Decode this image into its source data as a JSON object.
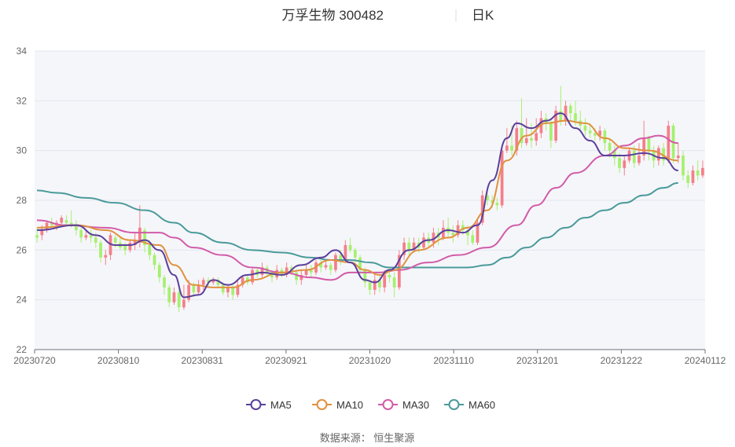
{
  "chart_data": {
    "type": "candlestick",
    "title": "万孚生物 300482",
    "subtitle": "日K",
    "source": "数据来源： 恒生聚源",
    "ylim": [
      22,
      34
    ],
    "yticks": [
      "22",
      "24",
      "26",
      "28",
      "30",
      "32",
      "34"
    ],
    "xticks": [
      "20230720",
      "20230810",
      "20230831",
      "20230921",
      "20231020",
      "20231110",
      "20231201",
      "20231222",
      "20240112"
    ],
    "colors": {
      "up": "#f57f89",
      "down": "#a6f06e",
      "MA5": "#5b3f9b",
      "MA10": "#e0913e",
      "MA30": "#d25ba8",
      "MA60": "#4a9a9a",
      "plot_band": "#f5f6fa",
      "grid": "#e3e6ee"
    },
    "legend": [
      {
        "name": "MA5",
        "key": "MA5"
      },
      {
        "name": "MA10",
        "key": "MA10"
      },
      {
        "name": "MA30",
        "key": "MA30"
      },
      {
        "name": "MA60",
        "key": "MA60"
      }
    ],
    "ma_series": {
      "MA5": [
        [
          0,
          26.8
        ],
        [
          8,
          27.0
        ],
        [
          12,
          26.6
        ],
        [
          16,
          26.2
        ],
        [
          19,
          26.2
        ],
        [
          22,
          26.4
        ],
        [
          25,
          26.0
        ],
        [
          28,
          25.0
        ],
        [
          30,
          24.1
        ],
        [
          33,
          24.2
        ],
        [
          36,
          24.8
        ],
        [
          39,
          24.6
        ],
        [
          43,
          25.0
        ],
        [
          46,
          25.1
        ],
        [
          50,
          25.0
        ],
        [
          54,
          25.4
        ],
        [
          58,
          25.7
        ],
        [
          61,
          26.0
        ],
        [
          64,
          25.5
        ],
        [
          67,
          24.8
        ],
        [
          69,
          24.7
        ],
        [
          72,
          25.2
        ],
        [
          76,
          26.0
        ],
        [
          80,
          26.4
        ],
        [
          84,
          26.8
        ],
        [
          87,
          26.7
        ],
        [
          90,
          27.0
        ],
        [
          93,
          28.8
        ],
        [
          96,
          30.5
        ],
        [
          98,
          31.1
        ],
        [
          101,
          30.9
        ],
        [
          104,
          31.2
        ],
        [
          107,
          31.5
        ],
        [
          110,
          30.9
        ],
        [
          113,
          30.4
        ],
        [
          116,
          29.8
        ],
        [
          120,
          29.8
        ],
        [
          124,
          29.9
        ],
        [
          128,
          29.7
        ],
        [
          131,
          29.2
        ]
      ],
      "MA10": [
        [
          0,
          26.9
        ],
        [
          8,
          27.0
        ],
        [
          14,
          26.8
        ],
        [
          19,
          26.4
        ],
        [
          25,
          26.2
        ],
        [
          28,
          25.4
        ],
        [
          32,
          24.6
        ],
        [
          36,
          24.5
        ],
        [
          40,
          24.5
        ],
        [
          44,
          24.8
        ],
        [
          50,
          25.1
        ],
        [
          55,
          25.2
        ],
        [
          60,
          25.6
        ],
        [
          64,
          25.5
        ],
        [
          67,
          25.2
        ],
        [
          70,
          25.0
        ],
        [
          73,
          25.2
        ],
        [
          78,
          26.0
        ],
        [
          84,
          26.5
        ],
        [
          88,
          26.9
        ],
        [
          92,
          27.6
        ],
        [
          96,
          29.6
        ],
        [
          100,
          30.6
        ],
        [
          104,
          31.1
        ],
        [
          108,
          31.2
        ],
        [
          112,
          31.1
        ],
        [
          116,
          30.5
        ],
        [
          120,
          30.1
        ],
        [
          125,
          30.0
        ],
        [
          131,
          29.6
        ]
      ],
      "MA30": [
        [
          0,
          27.2
        ],
        [
          6,
          27.0
        ],
        [
          14,
          26.9
        ],
        [
          20,
          26.7
        ],
        [
          25,
          26.7
        ],
        [
          28,
          26.5
        ],
        [
          32,
          26.1
        ],
        [
          38,
          25.8
        ],
        [
          44,
          25.3
        ],
        [
          50,
          25.1
        ],
        [
          56,
          24.9
        ],
        [
          60,
          24.8
        ],
        [
          64,
          25.1
        ],
        [
          70,
          25.1
        ],
        [
          74,
          25.2
        ],
        [
          80,
          25.5
        ],
        [
          86,
          25.8
        ],
        [
          92,
          26.1
        ],
        [
          98,
          27.0
        ],
        [
          102,
          27.8
        ],
        [
          106,
          28.5
        ],
        [
          110,
          29.1
        ],
        [
          116,
          29.8
        ],
        [
          120,
          30.2
        ],
        [
          124,
          30.5
        ],
        [
          127,
          30.6
        ],
        [
          131,
          30.3
        ]
      ],
      "MA60": [
        [
          0,
          28.4
        ],
        [
          4,
          28.3
        ],
        [
          10,
          28.1
        ],
        [
          16,
          27.9
        ],
        [
          22,
          27.6
        ],
        [
          28,
          27.1
        ],
        [
          32,
          26.7
        ],
        [
          38,
          26.3
        ],
        [
          44,
          26.0
        ],
        [
          50,
          25.9
        ],
        [
          56,
          25.7
        ],
        [
          60,
          25.6
        ],
        [
          64,
          25.6
        ],
        [
          68,
          25.5
        ],
        [
          72,
          25.3
        ],
        [
          76,
          25.3
        ],
        [
          82,
          25.3
        ],
        [
          88,
          25.3
        ],
        [
          92,
          25.4
        ],
        [
          96,
          25.7
        ],
        [
          100,
          26.1
        ],
        [
          104,
          26.5
        ],
        [
          108,
          26.9
        ],
        [
          112,
          27.3
        ],
        [
          116,
          27.6
        ],
        [
          120,
          27.9
        ],
        [
          124,
          28.2
        ],
        [
          128,
          28.5
        ],
        [
          131,
          28.7
        ]
      ]
    },
    "candles": [
      [
        26.6,
        26.5,
        26.9,
        26.3
      ],
      [
        26.6,
        26.8,
        27.0,
        26.4
      ],
      [
        26.8,
        27.1,
        27.2,
        26.7
      ],
      [
        27.1,
        27.0,
        27.3,
        26.9
      ],
      [
        27.0,
        27.1,
        27.2,
        26.8
      ],
      [
        27.1,
        27.3,
        27.4,
        27.0
      ],
      [
        27.2,
        27.1,
        27.4,
        27.0
      ],
      [
        27.1,
        27.0,
        27.6,
        26.9
      ],
      [
        27.0,
        26.8,
        27.2,
        26.6
      ],
      [
        26.8,
        26.5,
        26.9,
        26.3
      ],
      [
        26.5,
        26.6,
        26.8,
        26.4
      ],
      [
        26.6,
        26.5,
        26.8,
        26.3
      ],
      [
        26.5,
        26.3,
        26.7,
        26.1
      ],
      [
        26.3,
        25.7,
        26.4,
        25.5
      ],
      [
        25.7,
        25.8,
        26.0,
        25.4
      ],
      [
        25.8,
        26.6,
        26.7,
        25.6
      ],
      [
        26.5,
        26.3,
        26.6,
        26.1
      ],
      [
        26.3,
        26.1,
        26.5,
        26.0
      ],
      [
        26.2,
        26.0,
        26.3,
        25.8
      ],
      [
        26.0,
        26.3,
        26.4,
        25.9
      ],
      [
        26.2,
        26.4,
        26.7,
        26.0
      ],
      [
        26.3,
        26.9,
        27.8,
        26.1
      ],
      [
        26.8,
        26.2,
        26.9,
        25.9
      ],
      [
        26.2,
        25.8,
        26.4,
        25.6
      ],
      [
        25.8,
        25.4,
        25.9,
        25.2
      ],
      [
        25.4,
        24.9,
        25.5,
        24.7
      ],
      [
        24.9,
        24.5,
        25.0,
        24.2
      ],
      [
        24.5,
        23.9,
        24.6,
        23.7
      ],
      [
        23.9,
        24.3,
        24.5,
        23.8
      ],
      [
        24.3,
        23.7,
        24.4,
        23.5
      ],
      [
        23.7,
        24.0,
        24.6,
        23.6
      ],
      [
        24.0,
        24.6,
        24.8,
        23.9
      ],
      [
        24.6,
        24.3,
        24.7,
        24.1
      ],
      [
        24.3,
        24.6,
        24.8,
        24.2
      ],
      [
        24.6,
        24.8,
        24.9,
        24.4
      ],
      [
        24.8,
        24.7,
        24.9,
        24.5
      ],
      [
        24.7,
        24.8,
        24.9,
        24.6
      ],
      [
        24.8,
        24.6,
        24.9,
        24.5
      ],
      [
        24.6,
        24.3,
        24.7,
        24.2
      ],
      [
        24.3,
        24.5,
        24.6,
        24.1
      ],
      [
        24.5,
        24.2,
        24.6,
        24.0
      ],
      [
        24.2,
        24.6,
        24.8,
        24.1
      ],
      [
        24.6,
        24.9,
        25.0,
        24.5
      ],
      [
        24.9,
        24.7,
        25.0,
        24.6
      ],
      [
        24.7,
        25.2,
        25.3,
        24.6
      ],
      [
        25.2,
        25.0,
        25.3,
        24.9
      ],
      [
        25.0,
        25.3,
        25.5,
        24.9
      ],
      [
        25.3,
        25.1,
        25.4,
        25.0
      ],
      [
        25.1,
        24.9,
        25.2,
        24.7
      ],
      [
        24.9,
        25.2,
        25.4,
        24.8
      ],
      [
        25.2,
        25.0,
        25.3,
        24.9
      ],
      [
        25.0,
        25.3,
        25.5,
        24.9
      ],
      [
        25.3,
        25.1,
        25.4,
        25.0
      ],
      [
        25.1,
        24.8,
        25.2,
        24.6
      ],
      [
        24.8,
        25.0,
        25.2,
        24.6
      ],
      [
        25.0,
        25.2,
        25.4,
        24.9
      ],
      [
        25.2,
        25.1,
        25.4,
        24.9
      ],
      [
        25.1,
        25.5,
        25.6,
        25.0
      ],
      [
        25.5,
        25.3,
        25.6,
        25.1
      ],
      [
        25.3,
        25.4,
        25.6,
        25.2
      ],
      [
        25.4,
        25.2,
        25.5,
        25.0
      ],
      [
        25.2,
        25.8,
        25.9,
        25.1
      ],
      [
        25.8,
        25.6,
        26.0,
        25.4
      ],
      [
        25.6,
        26.2,
        26.4,
        25.5
      ],
      [
        26.2,
        26.0,
        26.5,
        25.9
      ],
      [
        26.0,
        25.7,
        26.1,
        25.5
      ],
      [
        25.7,
        25.2,
        25.8,
        25.0
      ],
      [
        25.2,
        24.7,
        25.3,
        24.5
      ],
      [
        24.7,
        24.4,
        24.8,
        24.2
      ],
      [
        24.4,
        24.8,
        25.0,
        24.2
      ],
      [
        24.8,
        24.5,
        25.0,
        24.3
      ],
      [
        24.5,
        25.0,
        25.2,
        24.3
      ],
      [
        25.0,
        24.9,
        25.3,
        24.7
      ],
      [
        24.9,
        24.5,
        25.1,
        24.1
      ],
      [
        24.5,
        25.8,
        26.0,
        24.4
      ],
      [
        25.8,
        26.3,
        26.5,
        25.6
      ],
      [
        26.3,
        26.0,
        26.5,
        25.8
      ],
      [
        26.0,
        26.3,
        26.5,
        25.9
      ],
      [
        26.3,
        26.1,
        26.5,
        25.9
      ],
      [
        26.1,
        26.5,
        26.7,
        26.0
      ],
      [
        26.5,
        26.3,
        26.7,
        26.1
      ],
      [
        26.3,
        26.7,
        26.9,
        26.1
      ],
      [
        26.7,
        26.5,
        26.9,
        26.2
      ],
      [
        26.5,
        26.9,
        27.2,
        26.4
      ],
      [
        26.9,
        26.7,
        27.3,
        26.5
      ],
      [
        26.7,
        26.6,
        27.0,
        26.3
      ],
      [
        26.6,
        27.0,
        27.2,
        26.5
      ],
      [
        27.0,
        26.8,
        27.2,
        26.6
      ],
      [
        26.8,
        26.6,
        27.0,
        26.2
      ],
      [
        26.6,
        26.3,
        26.8,
        26.2
      ],
      [
        26.3,
        27.1,
        27.3,
        26.2
      ],
      [
        27.1,
        28.2,
        28.4,
        27.0
      ],
      [
        28.2,
        28.0,
        28.5,
        27.8
      ],
      [
        28.0,
        27.9,
        28.2,
        27.7
      ],
      [
        27.9,
        27.8,
        28.1,
        27.6
      ],
      [
        27.8,
        30.0,
        30.1,
        27.7
      ],
      [
        30.0,
        30.2,
        30.9,
        29.9
      ],
      [
        30.2,
        30.0,
        31.0,
        29.8
      ],
      [
        30.0,
        30.9,
        31.2,
        29.8
      ],
      [
        30.9,
        30.3,
        32.1,
        30.1
      ],
      [
        30.3,
        30.5,
        31.3,
        30.2
      ],
      [
        30.5,
        30.4,
        31.1,
        30.1
      ],
      [
        30.4,
        30.7,
        31.3,
        30.2
      ],
      [
        30.7,
        31.3,
        31.6,
        30.5
      ],
      [
        31.3,
        31.1,
        31.5,
        30.8
      ],
      [
        31.1,
        30.4,
        31.3,
        30.1
      ],
      [
        30.4,
        31.6,
        31.8,
        30.3
      ],
      [
        31.6,
        31.2,
        32.6,
        31.0
      ],
      [
        31.2,
        31.8,
        32.0,
        31.0
      ],
      [
        31.8,
        31.5,
        31.9,
        31.2
      ],
      [
        31.5,
        31.2,
        32.0,
        31.0
      ],
      [
        31.2,
        31.0,
        31.6,
        30.8
      ],
      [
        31.0,
        30.8,
        31.3,
        30.6
      ],
      [
        30.8,
        30.7,
        31.1,
        30.5
      ],
      [
        30.7,
        30.6,
        30.9,
        30.4
      ],
      [
        30.6,
        30.8,
        31.0,
        30.4
      ],
      [
        30.8,
        30.3,
        30.9,
        30.0
      ],
      [
        30.3,
        30.0,
        30.5,
        29.7
      ],
      [
        30.0,
        29.7,
        30.2,
        29.4
      ],
      [
        29.7,
        29.3,
        29.9,
        29.1
      ],
      [
        29.3,
        29.6,
        29.8,
        29.0
      ],
      [
        29.6,
        30.0,
        30.1,
        29.5
      ],
      [
        30.0,
        29.5,
        30.2,
        29.3
      ],
      [
        29.5,
        29.8,
        30.3,
        29.4
      ],
      [
        29.8,
        30.5,
        31.2,
        29.6
      ],
      [
        30.5,
        30.0,
        30.6,
        29.6
      ],
      [
        30.0,
        29.6,
        30.2,
        29.3
      ],
      [
        29.6,
        30.1,
        30.2,
        29.4
      ],
      [
        30.1,
        29.6,
        30.3,
        29.4
      ],
      [
        29.6,
        31.0,
        31.2,
        29.5
      ],
      [
        31.0,
        29.7,
        31.1,
        29.5
      ],
      [
        29.7,
        29.8,
        30.3,
        29.5
      ],
      [
        29.8,
        29.0,
        30.0,
        28.8
      ],
      [
        29.0,
        28.7,
        29.2,
        28.5
      ],
      [
        28.7,
        29.2,
        29.4,
        28.6
      ],
      [
        29.2,
        29.0,
        29.6,
        28.8
      ],
      [
        29.0,
        29.3,
        29.6,
        28.9
      ]
    ]
  }
}
